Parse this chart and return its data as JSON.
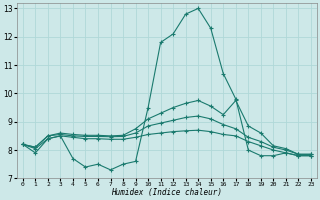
{
  "xlabel": "Humidex (Indice chaleur)",
  "xlim": [
    -0.5,
    23.5
  ],
  "ylim": [
    7,
    13.2
  ],
  "yticks": [
    7,
    8,
    9,
    10,
    11,
    12,
    13
  ],
  "xticks": [
    0,
    1,
    2,
    3,
    4,
    5,
    6,
    7,
    8,
    9,
    10,
    11,
    12,
    13,
    14,
    15,
    16,
    17,
    18,
    19,
    20,
    21,
    22,
    23
  ],
  "background_color": "#cde8e8",
  "grid_color": "#b0d8d8",
  "line_color": "#1a7a6e",
  "series": [
    {
      "x": [
        0,
        1,
        2,
        3,
        4,
        5,
        6,
        7,
        8,
        9,
        10,
        11,
        12,
        13,
        14,
        15,
        16,
        17,
        18,
        19,
        20,
        21,
        22,
        23
      ],
      "y": [
        8.2,
        7.9,
        8.4,
        8.5,
        7.7,
        7.4,
        7.5,
        7.3,
        7.5,
        7.6,
        9.5,
        11.8,
        12.1,
        12.8,
        13.0,
        12.3,
        10.7,
        9.8,
        8.0,
        7.8,
        7.8,
        7.9,
        7.8,
        7.8
      ]
    },
    {
      "x": [
        0,
        1,
        2,
        3,
        4,
        5,
        6,
        7,
        8,
        9,
        10,
        11,
        12,
        13,
        14,
        15,
        16,
        17,
        18,
        19,
        20,
        21,
        22,
        23
      ],
      "y": [
        8.2,
        8.05,
        8.4,
        8.5,
        8.45,
        8.4,
        8.4,
        8.38,
        8.38,
        8.45,
        8.55,
        8.6,
        8.65,
        8.68,
        8.7,
        8.65,
        8.55,
        8.5,
        8.3,
        8.15,
        8.0,
        7.9,
        7.8,
        7.8
      ]
    },
    {
      "x": [
        0,
        1,
        2,
        3,
        4,
        5,
        6,
        7,
        8,
        9,
        10,
        11,
        12,
        13,
        14,
        15,
        16,
        17,
        18,
        19,
        20,
        21,
        22,
        23
      ],
      "y": [
        8.2,
        8.1,
        8.5,
        8.55,
        8.5,
        8.48,
        8.48,
        8.47,
        8.48,
        8.6,
        8.85,
        8.95,
        9.05,
        9.15,
        9.2,
        9.1,
        8.9,
        8.75,
        8.45,
        8.3,
        8.1,
        8.0,
        7.85,
        7.85
      ]
    },
    {
      "x": [
        0,
        1,
        2,
        3,
        4,
        5,
        6,
        7,
        8,
        9,
        10,
        11,
        12,
        13,
        14,
        15,
        16,
        17,
        18,
        19,
        20,
        21,
        22,
        23
      ],
      "y": [
        8.2,
        8.1,
        8.5,
        8.6,
        8.55,
        8.52,
        8.52,
        8.5,
        8.52,
        8.75,
        9.1,
        9.3,
        9.5,
        9.65,
        9.75,
        9.55,
        9.25,
        9.75,
        8.85,
        8.6,
        8.15,
        8.05,
        7.85,
        7.85
      ]
    }
  ],
  "marker": "+",
  "markersize": 3.0,
  "linewidth": 0.8
}
